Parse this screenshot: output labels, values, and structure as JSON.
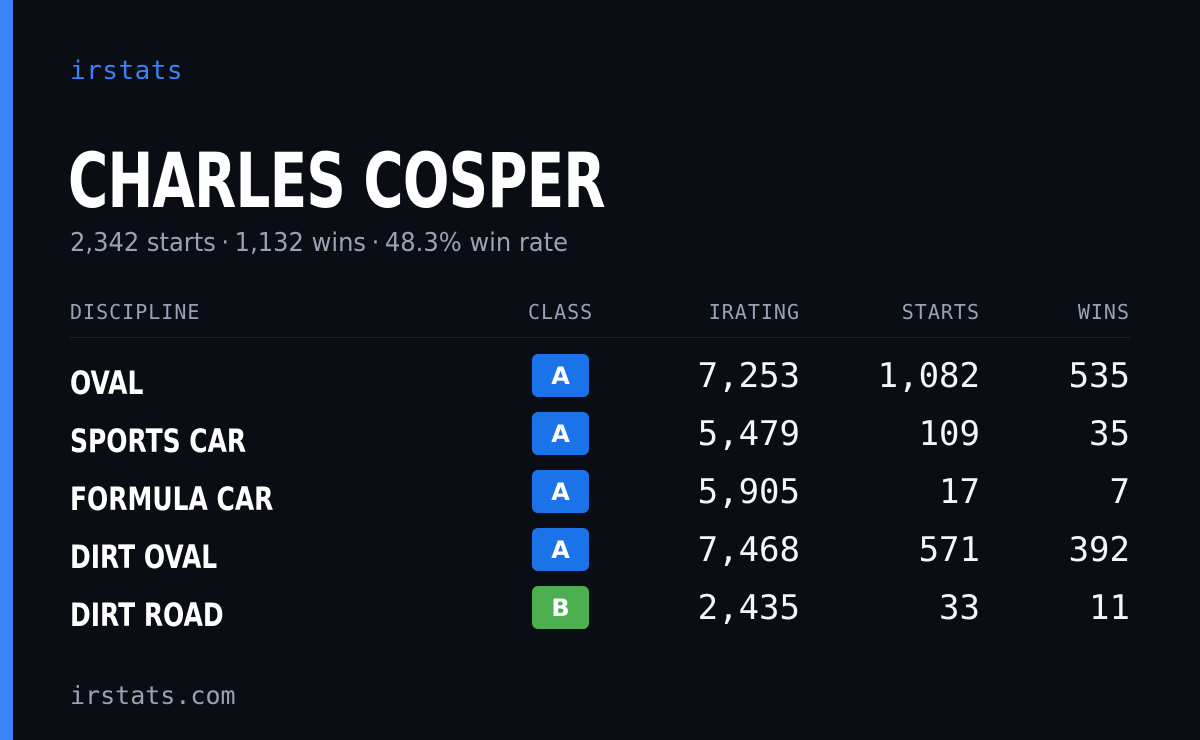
{
  "brand": "irstats",
  "driver": {
    "name": "CHARLES COSPER",
    "starts": "2,342 starts",
    "wins": "1,132 wins",
    "win_rate": "48.3% win rate",
    "separator": "·"
  },
  "table": {
    "headers": {
      "discipline": "DISCIPLINE",
      "class": "CLASS",
      "irating": "IRATING",
      "starts": "STARTS",
      "wins": "WINS"
    },
    "rows": [
      {
        "discipline": "OVAL",
        "class": "A",
        "class_color": "#1a73e8",
        "irating": "7,253",
        "starts": "1,082",
        "wins": "535"
      },
      {
        "discipline": "SPORTS CAR",
        "class": "A",
        "class_color": "#1a73e8",
        "irating": "5,479",
        "starts": "109",
        "wins": "35"
      },
      {
        "discipline": "FORMULA CAR",
        "class": "A",
        "class_color": "#1a73e8",
        "irating": "5,905",
        "starts": "17",
        "wins": "7"
      },
      {
        "discipline": "DIRT OVAL",
        "class": "A",
        "class_color": "#1a73e8",
        "irating": "7,468",
        "starts": "571",
        "wins": "392"
      },
      {
        "discipline": "DIRT ROAD",
        "class": "B",
        "class_color": "#4caf50",
        "irating": "2,435",
        "starts": "33",
        "wins": "11"
      }
    ]
  },
  "footer": "irstats.com",
  "colors": {
    "background": "#0b0d14",
    "accent": "#3b82f6",
    "muted_text": "#98a2b3"
  }
}
